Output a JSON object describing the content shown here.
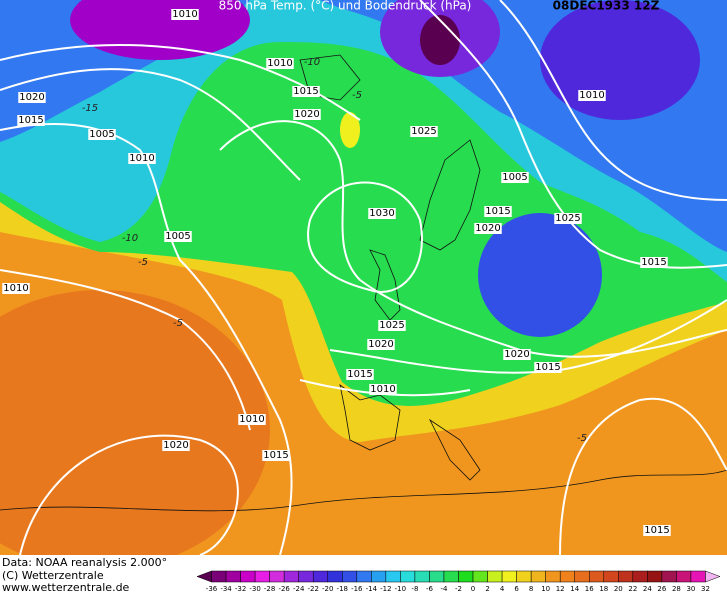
{
  "header": {
    "title": "850 hPa Temp. (°C) und Bodendruck (hPa)",
    "date": "08DEC1933 12Z"
  },
  "isobar_labels": [
    "1010",
    "1020",
    "1015",
    "1010",
    "1015",
    "1020",
    "1005",
    "1010",
    "1025",
    "1010",
    "1005",
    "1015",
    "1020",
    "1025",
    "1030",
    "1005",
    "1015",
    "1010",
    "1025",
    "1020",
    "1020",
    "1015",
    "1015",
    "1010",
    "1010",
    "1020",
    "1015",
    "1015"
  ],
  "temperature_labels": [
    "-10",
    "-15",
    "-5",
    "-10",
    "-5",
    "-5",
    "-5"
  ],
  "footer": {
    "source": "Data: NOAA reanalysis 2.000°",
    "copyright": "(C) Wetterzentrale",
    "website": "www.wetterzentrale.de"
  },
  "colorbar": {
    "ticks": [
      "-36",
      "-34",
      "-32",
      "-30",
      "-28",
      "-26",
      "-24",
      "-22",
      "-20",
      "-18",
      "-16",
      "-14",
      "-12",
      "-10",
      "-8",
      "-6",
      "-4",
      "-2",
      "0",
      "2",
      "4",
      "6",
      "8",
      "10",
      "12",
      "14",
      "16",
      "18",
      "20",
      "22",
      "24",
      "26",
      "28",
      "30",
      "32"
    ],
    "colors": [
      "#5a0050",
      "#7a0078",
      "#a000a0",
      "#c800c8",
      "#e61ee6",
      "#d22ddc",
      "#a028dc",
      "#7828dc",
      "#5028dc",
      "#3232dc",
      "#3250e6",
      "#3278f0",
      "#28a0f0",
      "#28c8f0",
      "#28dcdc",
      "#28dcb4",
      "#28dc8c",
      "#28dc50",
      "#1edc1e",
      "#64e61e",
      "#c8f01e",
      "#f0f01e",
      "#f0d21e",
      "#f0b41e",
      "#f0961e",
      "#f0821e",
      "#e66e1e",
      "#dc5a1e",
      "#d2461e",
      "#be321e",
      "#aa1e1e",
      "#961414",
      "#a01450",
      "#c81478",
      "#e614b4",
      "#f0b4f0"
    ]
  }
}
